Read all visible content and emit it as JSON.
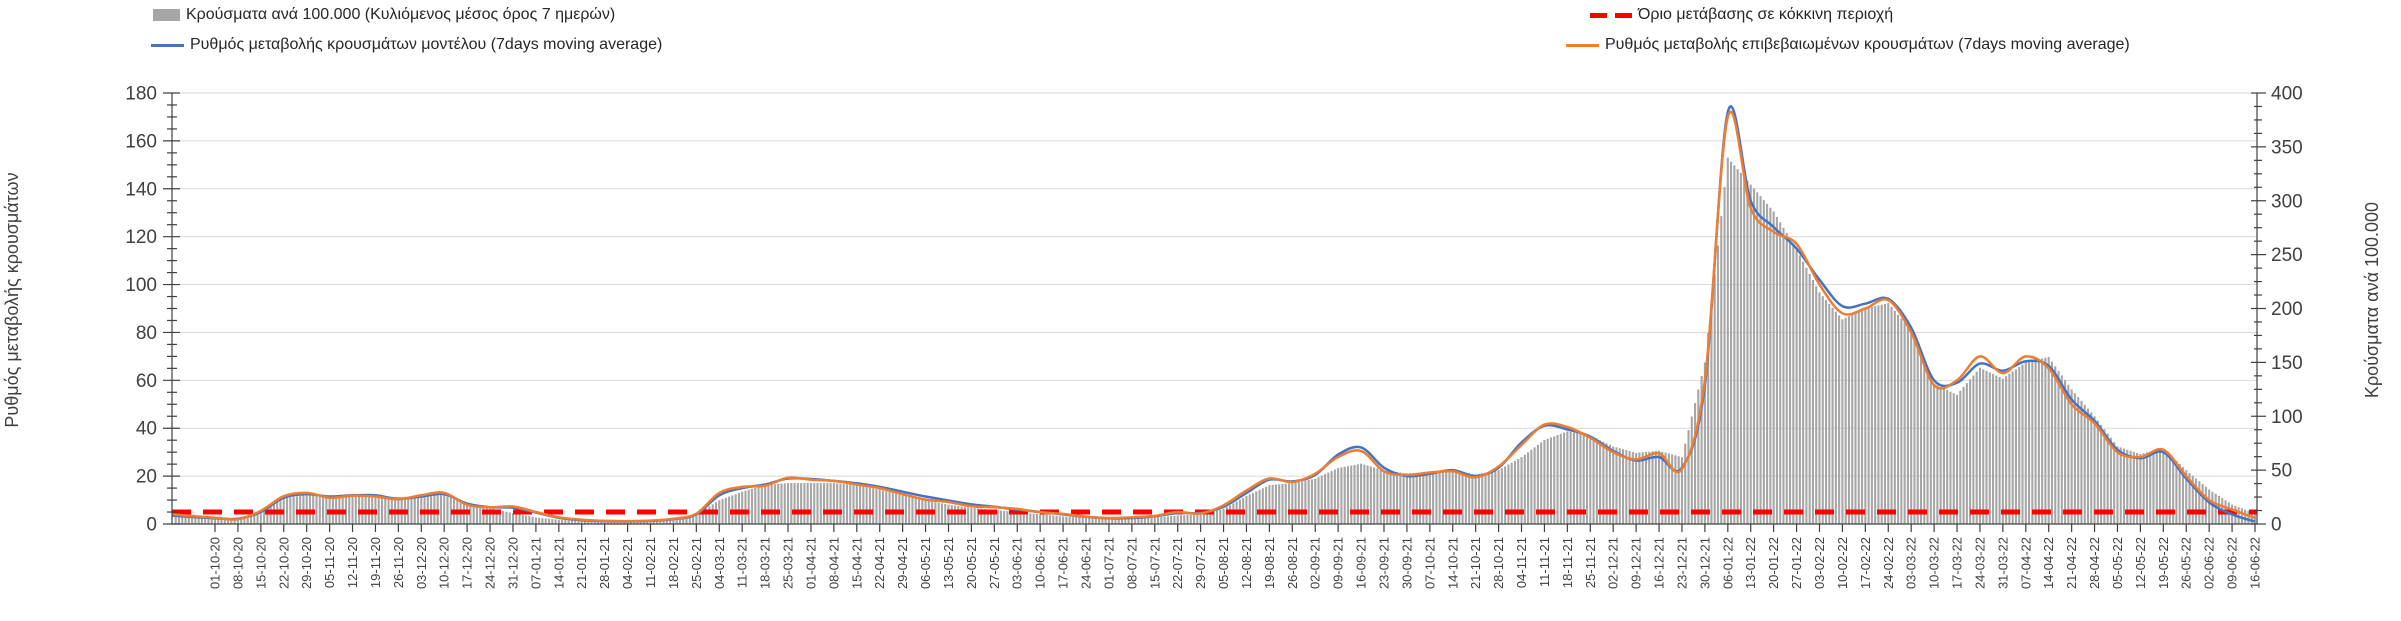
{
  "legend": {
    "items": [
      {
        "id": "bars",
        "label": "Κρούσματα ανά 100.000 (Κυλιόμενος μέσος όρος 7 ημερών)",
        "swatch": "bar",
        "color": "#A6A6A6"
      },
      {
        "id": "threshold",
        "label": "Όριο μετάβασης σε κόκκινη περιοχή",
        "swatch": "dash",
        "color": "#FF0000"
      },
      {
        "id": "model",
        "label": "Ρυθμός μεταβολής κρουσμάτων μοντέλου (7days moving average)",
        "swatch": "line",
        "color": "#4472C4"
      },
      {
        "id": "confirmed",
        "label": "Ρυθμός μεταβολής επιβεβαιωμένων κρουσμάτων (7days moving average)",
        "swatch": "line",
        "color": "#ED7D31"
      }
    ]
  },
  "chart_data": {
    "type": "combo",
    "grid": "horizontal",
    "legend_position": "top",
    "x_labels": [
      "01-10-20",
      "08-10-20",
      "15-10-20",
      "22-10-20",
      "29-10-20",
      "05-11-20",
      "12-11-20",
      "19-11-20",
      "26-11-20",
      "03-12-20",
      "10-12-20",
      "17-12-20",
      "24-12-20",
      "31-12-20",
      "07-01-21",
      "14-01-21",
      "21-01-21",
      "28-01-21",
      "04-02-21",
      "11-02-21",
      "18-02-21",
      "25-02-21",
      "04-03-21",
      "11-03-21",
      "18-03-21",
      "25-03-21",
      "01-04-21",
      "08-04-21",
      "15-04-21",
      "22-04-21",
      "29-04-21",
      "06-05-21",
      "13-05-21",
      "20-05-21",
      "27-05-21",
      "03-06-21",
      "10-06-21",
      "17-06-21",
      "24-06-21",
      "01-07-21",
      "08-07-21",
      "15-07-21",
      "22-07-21",
      "29-07-21",
      "05-08-21",
      "12-08-21",
      "19-08-21",
      "26-08-21",
      "02-09-21",
      "09-09-21",
      "16-09-21",
      "23-09-21",
      "30-09-21",
      "07-10-21",
      "14-10-21",
      "21-10-21",
      "28-10-21",
      "04-11-21",
      "11-11-21",
      "18-11-21",
      "25-11-21",
      "02-12-21",
      "09-12-21",
      "16-12-21",
      "23-12-21",
      "30-12-21",
      "06-01-22",
      "13-01-22",
      "20-01-22",
      "27-01-22",
      "03-02-22",
      "10-02-22",
      "17-02-22",
      "24-02-22",
      "03-03-22",
      "10-03-22",
      "17-03-22",
      "24-03-22",
      "31-03-22",
      "07-04-22",
      "14-04-22",
      "21-04-22",
      "28-04-22",
      "05-05-22",
      "12-05-22",
      "19-05-22",
      "26-05-22",
      "02-06-22",
      "09-06-22",
      "16-06-22"
    ],
    "series": [
      {
        "name": "Κρούσματα ανά 100.000 (Κυλιόμενος μέσος όρος 7 ημερών)",
        "type": "bar",
        "axis": "right",
        "color": "#A6A6A6",
        "values": [
          7,
          5,
          10,
          24,
          27,
          26,
          26,
          26,
          25,
          26,
          27,
          19,
          15,
          10,
          6,
          4,
          3,
          3,
          3,
          4,
          5,
          9,
          22,
          30,
          36,
          38,
          38,
          38,
          36,
          32,
          27,
          22,
          18,
          15,
          13,
          11,
          9,
          7,
          6,
          5,
          5,
          6,
          8,
          9,
          14,
          26,
          36,
          38,
          42,
          52,
          56,
          50,
          47,
          48,
          50,
          46,
          50,
          62,
          78,
          86,
          82,
          72,
          66,
          68,
          62,
          150,
          340,
          315,
          290,
          255,
          215,
          190,
          200,
          205,
          180,
          130,
          120,
          145,
          135,
          150,
          155,
          125,
          100,
          72,
          65,
          70,
          50,
          32,
          18,
          10
        ]
      },
      {
        "name": "Ρυθμός μεταβολής κρουσμάτων μοντέλου (7days moving average)",
        "type": "line",
        "axis": "left",
        "color": "#4472C4",
        "lead": 3.5,
        "values": [
          2.4,
          2.2,
          5.0,
          11.0,
          12.5,
          11.5,
          12.0,
          12.0,
          10.5,
          11.5,
          12.5,
          8.5,
          7.0,
          6.8,
          4.8,
          2.6,
          1.6,
          1.2,
          1.1,
          1.3,
          2.0,
          4.0,
          12.0,
          15.0,
          16.5,
          19.0,
          18.8,
          18.0,
          17.0,
          15.5,
          13.5,
          11.5,
          9.8,
          8.2,
          7.2,
          6.0,
          5.0,
          4.0,
          3.0,
          2.4,
          2.5,
          3.2,
          4.6,
          4.6,
          7.2,
          13.0,
          18.5,
          17.8,
          20.5,
          29.0,
          32.0,
          23.5,
          20.0,
          21.0,
          22.5,
          20.0,
          23.5,
          34.0,
          41.0,
          39.5,
          36.5,
          30.5,
          26.5,
          28.0,
          23.5,
          58.0,
          172.0,
          135.0,
          124.0,
          115.0,
          102.0,
          91.0,
          92.0,
          94.0,
          82.0,
          60.0,
          59.0,
          67.0,
          64.0,
          68.0,
          66.0,
          52.0,
          43.0,
          31.0,
          27.5,
          30.0,
          19.0,
          9.0,
          4.0,
          1.0
        ]
      },
      {
        "name": "Ρυθμός μεταβολής επιβεβαιωμένων κρουσμάτων (7days moving average)",
        "type": "line",
        "axis": "left",
        "color": "#ED7D31",
        "lead": 4.0,
        "values": [
          2.6,
          2.0,
          5.5,
          11.6,
          13.0,
          11.0,
          11.8,
          11.5,
          10.3,
          12.0,
          13.0,
          8.0,
          7.0,
          7.3,
          5.0,
          2.8,
          1.8,
          1.3,
          1.2,
          1.4,
          2.2,
          4.3,
          13.0,
          15.5,
          16.0,
          19.3,
          18.5,
          18.0,
          16.5,
          15.0,
          12.5,
          10.2,
          9.2,
          7.4,
          7.0,
          6.3,
          4.9,
          4.2,
          3.1,
          2.5,
          2.8,
          3.4,
          5.0,
          4.4,
          7.8,
          14.0,
          19.0,
          17.5,
          21.0,
          28.0,
          30.5,
          22.0,
          20.5,
          21.5,
          22.0,
          19.5,
          24.0,
          33.0,
          41.5,
          40.5,
          36.0,
          30.0,
          27.0,
          29.5,
          23.0,
          60.0,
          170.0,
          132.0,
          122.0,
          117.0,
          100.0,
          88.0,
          90.0,
          93.5,
          80.0,
          58.0,
          60.0,
          70.0,
          63.0,
          70.0,
          65.0,
          50.0,
          42.0,
          30.0,
          28.0,
          31.0,
          20.0,
          10.0,
          6.0,
          2.5
        ]
      }
    ],
    "threshold": {
      "name": "Όριο μετάβασης σε κόκκινη περιοχή",
      "axis": "left",
      "value": 5,
      "color": "#FF0000",
      "style": "dashed"
    },
    "left_axis": {
      "title": "Ρυθμός μεταβολής κρουσμάτων",
      "min": 0,
      "max": 180,
      "step": 20,
      "tick_labels": [
        "0",
        "20",
        "40",
        "60",
        "80",
        "100",
        "120",
        "140",
        "160",
        "180"
      ]
    },
    "right_axis": {
      "title": "Κρούσματα ανά 100.000",
      "min": 0,
      "max": 400,
      "step": 50,
      "tick_labels": [
        "0",
        "50",
        "100",
        "150",
        "200",
        "250",
        "300",
        "350",
        "400"
      ]
    }
  }
}
